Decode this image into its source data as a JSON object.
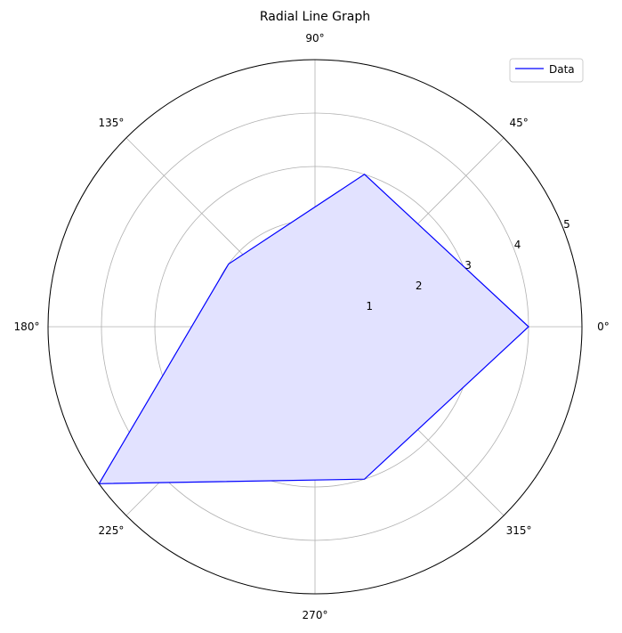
{
  "chart_data": {
    "type": "line",
    "subtype": "polar",
    "title": "Radial Line Graph",
    "angle_labels": [
      "0°",
      "45°",
      "90°",
      "135°",
      "180°",
      "225°",
      "270°",
      "315°"
    ],
    "radial_ticks": [
      1,
      2,
      3,
      4,
      5
    ],
    "radial_tick_labels": [
      "1",
      "2",
      "3",
      "4",
      "5"
    ],
    "rlim": [
      0,
      5
    ],
    "grid": true,
    "legend": {
      "placement": "top-right",
      "entries": [
        "Data"
      ]
    },
    "series": [
      {
        "name": "Data",
        "theta_deg": [
          0,
          72,
          144,
          216,
          288
        ],
        "r": [
          4.0,
          3.0,
          2.0,
          5.0,
          3.0
        ],
        "line_color": "#0000ff",
        "fill_color": "#e2e2ff",
        "filled": true
      }
    ]
  }
}
